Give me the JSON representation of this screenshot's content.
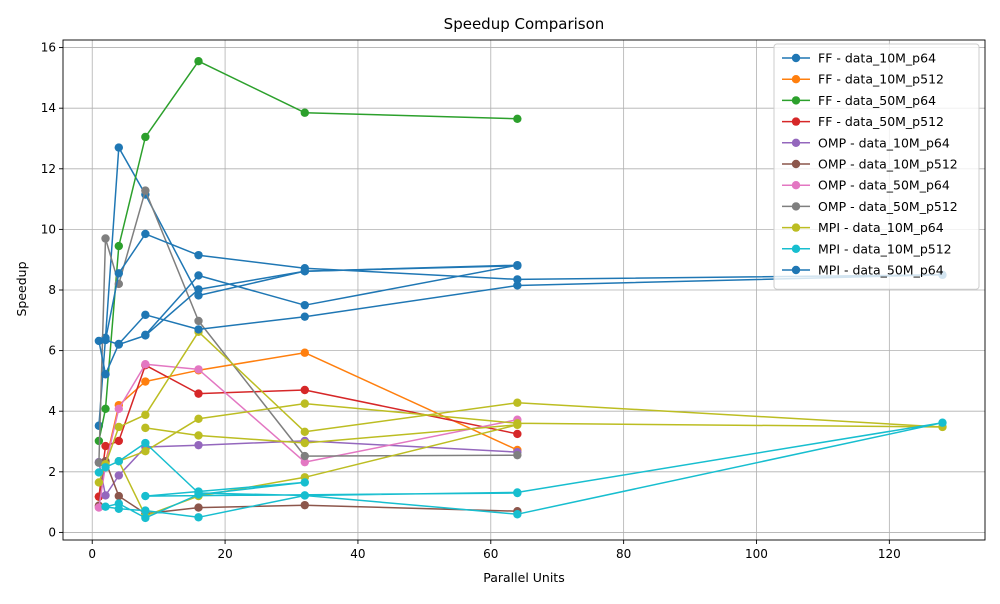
{
  "chart_data": {
    "type": "line",
    "title": "Speedup Comparison",
    "xlabel": "Parallel Units",
    "ylabel": "Speedup",
    "xlim": [
      -4.4,
      134.4
    ],
    "ylim": [
      -0.25,
      16.25
    ],
    "xticks": [
      0,
      20,
      40,
      60,
      80,
      100,
      120
    ],
    "yticks": [
      0,
      2,
      4,
      6,
      8,
      10,
      12,
      14,
      16
    ],
    "grid": true,
    "legend_position": "top-right",
    "series": [
      {
        "name": "FF - data_10M_p64",
        "color": "#1f77b4",
        "points": [
          [
            1,
            3.52
          ],
          [
            2,
            6.42
          ],
          [
            4,
            12.7
          ],
          [
            8,
            11.15
          ],
          [
            16,
            7.82
          ],
          [
            32,
            8.62
          ],
          [
            64,
            8.8
          ]
        ]
      },
      {
        "name": "FF - data_10M_p512",
        "color": "#ff7f0e",
        "points": [
          [
            1,
            1.18
          ],
          [
            2,
            2.3
          ],
          [
            4,
            4.2
          ],
          [
            8,
            4.98
          ],
          [
            16,
            5.35
          ],
          [
            32,
            5.93
          ],
          [
            64,
            2.72
          ]
        ]
      },
      {
        "name": "FF - data_50M_p64",
        "color": "#2ca02c",
        "points": [
          [
            1,
            3.02
          ],
          [
            2,
            4.08
          ],
          [
            4,
            9.45
          ],
          [
            8,
            13.05
          ],
          [
            16,
            15.55
          ],
          [
            32,
            13.85
          ],
          [
            64,
            13.65
          ]
        ]
      },
      {
        "name": "FF - data_50M_p512",
        "color": "#d62728",
        "points": [
          [
            1,
            1.18
          ],
          [
            2,
            2.85
          ],
          [
            4,
            3.02
          ],
          [
            8,
            5.52
          ],
          [
            16,
            4.58
          ],
          [
            32,
            4.7
          ],
          [
            64,
            3.25
          ]
        ]
      },
      {
        "name": "OMP - data_10M_p64",
        "color": "#9467bd",
        "points": [
          [
            1,
            2.32
          ],
          [
            2,
            1.22
          ],
          [
            4,
            1.88
          ],
          [
            8,
            2.82
          ],
          [
            16,
            2.88
          ],
          [
            32,
            3.02
          ],
          [
            64,
            2.65
          ]
        ]
      },
      {
        "name": "OMP - data_10M_p512",
        "color": "#8c564b",
        "points": [
          [
            1,
            0.88
          ],
          [
            2,
            2.35
          ],
          [
            4,
            1.2
          ],
          [
            8,
            0.62
          ],
          [
            16,
            0.82
          ],
          [
            32,
            0.9
          ],
          [
            64,
            0.7
          ]
        ]
      },
      {
        "name": "OMP - data_50M_p64",
        "color": "#e377c2",
        "points": [
          [
            1,
            0.82
          ],
          [
            2,
            2.22
          ],
          [
            4,
            4.08
          ],
          [
            8,
            5.55
          ],
          [
            16,
            5.38
          ],
          [
            32,
            2.32
          ],
          [
            64,
            3.72
          ]
        ]
      },
      {
        "name": "OMP - data_50M_p512",
        "color": "#7f7f7f",
        "points": [
          [
            1,
            2.3
          ],
          [
            2,
            9.7
          ],
          [
            4,
            8.2
          ],
          [
            8,
            11.28
          ],
          [
            16,
            6.98
          ],
          [
            32,
            2.52
          ],
          [
            64,
            2.55
          ]
        ]
      },
      {
        "name": "MPI - data_10M_p64",
        "color": "#bcbd22",
        "points": [
          [
            1,
            1.65
          ],
          [
            2,
            2.25
          ],
          [
            4,
            3.48
          ],
          [
            8,
            3.88
          ],
          [
            16,
            6.62
          ],
          [
            32,
            3.32
          ],
          [
            64,
            4.28
          ],
          [
            128,
            3.48
          ],
          [
            64,
            3.6
          ],
          [
            32,
            4.25
          ],
          [
            16,
            3.75
          ],
          [
            8,
            2.68
          ],
          [
            4,
            2.35
          ],
          [
            8,
            0.55
          ],
          [
            16,
            1.2
          ],
          [
            32,
            1.82
          ],
          [
            64,
            3.55
          ],
          [
            32,
            2.95
          ],
          [
            16,
            3.2
          ],
          [
            8,
            3.45
          ]
        ]
      },
      {
        "name": "MPI - data_10M_p512",
        "color": "#17becf",
        "points": [
          [
            1,
            1.98
          ],
          [
            2,
            2.15
          ],
          [
            4,
            2.35
          ],
          [
            8,
            2.95
          ],
          [
            16,
            1.3
          ],
          [
            32,
            1.22
          ],
          [
            64,
            1.32
          ],
          [
            128,
            3.62
          ],
          [
            64,
            0.6
          ],
          [
            32,
            1.22
          ],
          [
            16,
            0.5
          ],
          [
            8,
            0.72
          ],
          [
            4,
            0.78
          ],
          [
            2,
            0.85
          ],
          [
            4,
            0.95
          ],
          [
            8,
            0.48
          ],
          [
            16,
            1.25
          ],
          [
            32,
            1.65
          ],
          [
            16,
            1.35
          ],
          [
            8,
            1.2
          ],
          [
            64,
            1.3
          ]
        ]
      },
      {
        "name": "MPI - data_50M_p64",
        "color": "#1f77b4",
        "points": [
          [
            1,
            6.32
          ],
          [
            2,
            5.22
          ],
          [
            4,
            6.22
          ],
          [
            8,
            7.18
          ],
          [
            16,
            6.7
          ],
          [
            32,
            7.12
          ],
          [
            64,
            8.15
          ],
          [
            128,
            8.5
          ],
          [
            64,
            8.35
          ],
          [
            32,
            8.72
          ],
          [
            16,
            9.15
          ],
          [
            8,
            9.85
          ],
          [
            4,
            8.55
          ],
          [
            2,
            6.35
          ],
          [
            4,
            6.2
          ],
          [
            8,
            6.5
          ],
          [
            16,
            8.02
          ],
          [
            32,
            8.62
          ],
          [
            64,
            8.82
          ],
          [
            32,
            7.5
          ],
          [
            16,
            8.48
          ],
          [
            8,
            6.52
          ]
        ]
      }
    ]
  }
}
